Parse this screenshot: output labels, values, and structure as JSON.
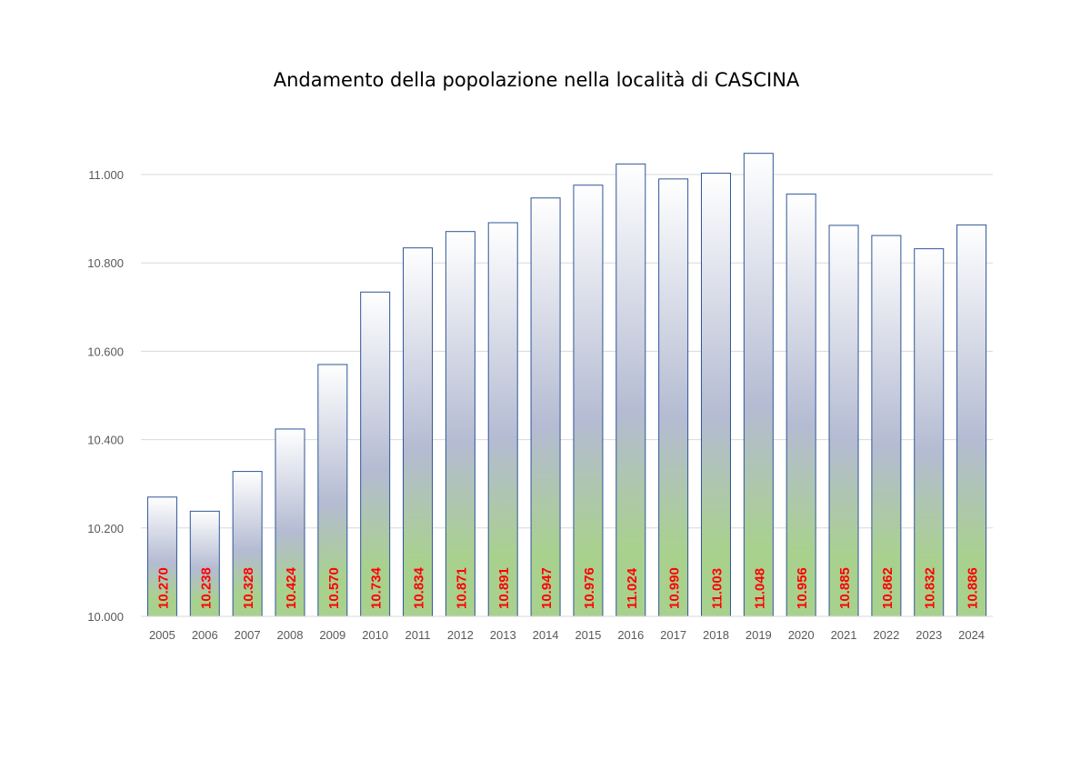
{
  "chart_data": {
    "type": "bar",
    "title": "Andamento della popolazione nella località di CASCINA",
    "xlabel": "",
    "ylabel": "",
    "categories": [
      "2005",
      "2006",
      "2007",
      "2008",
      "2009",
      "2010",
      "2011",
      "2012",
      "2013",
      "2014",
      "2015",
      "2016",
      "2017",
      "2018",
      "2019",
      "2020",
      "2021",
      "2022",
      "2023",
      "2024"
    ],
    "values": [
      10270,
      10238,
      10328,
      10424,
      10570,
      10734,
      10834,
      10871,
      10891,
      10947,
      10976,
      11024,
      10990,
      11003,
      11048,
      10956,
      10885,
      10862,
      10832,
      10886
    ],
    "value_labels": [
      "10.270",
      "10.238",
      "10.328",
      "10.424",
      "10.570",
      "10.734",
      "10.834",
      "10.871",
      "10.891",
      "10.947",
      "10.976",
      "11.024",
      "10.990",
      "11.003",
      "11.048",
      "10.956",
      "10.885",
      "10.862",
      "10.832",
      "10.886"
    ],
    "ylim": [
      10000,
      11000
    ],
    "y_ticks": [
      10000,
      10200,
      10400,
      10600,
      10800,
      11000
    ],
    "y_tick_labels": [
      "10.000",
      "10.200",
      "10.400",
      "10.600",
      "10.800",
      "11.000"
    ],
    "grid": true,
    "legend": "none",
    "colors": {
      "bar_top": "#ffffff",
      "bar_mid": "#b4bbd2",
      "bar_bottom": "#a9d18e",
      "bar_border": "#2f5597",
      "label": "#ff0000",
      "grid": "#d9d9d9",
      "axis_text": "#595959"
    }
  }
}
